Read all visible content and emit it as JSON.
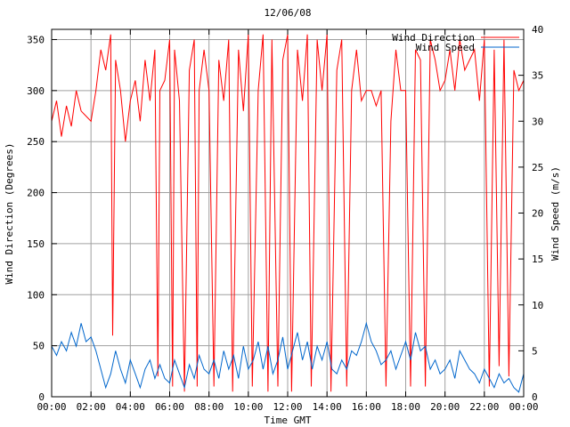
{
  "chart_data": {
    "type": "line",
    "title": "12/06/08",
    "xlabel": "Time GMT",
    "ylabel_left": "Wind Direction (Degrees)",
    "ylabel_right": "Wind Speed (m/s)",
    "x_ticks": [
      "00:00",
      "02:00",
      "04:00",
      "06:00",
      "08:00",
      "10:00",
      "12:00",
      "14:00",
      "16:00",
      "18:00",
      "20:00",
      "22:00",
      "00:00"
    ],
    "x_range_hours": [
      0,
      24
    ],
    "y_left_range": [
      0,
      360
    ],
    "y_left_ticks": [
      0,
      50,
      100,
      150,
      200,
      250,
      300,
      350
    ],
    "y_right_range": [
      0,
      40
    ],
    "y_right_ticks": [
      0,
      5,
      10,
      15,
      20,
      25,
      30,
      35,
      40
    ],
    "grid": true,
    "legend_position": "top-right",
    "series": [
      {
        "name": "Wind Direction",
        "axis": "left",
        "color": "#ff0000",
        "x_hours": [
          0,
          0.25,
          0.5,
          0.75,
          1,
          1.25,
          1.5,
          1.75,
          2,
          2.25,
          2.5,
          2.75,
          3,
          3.1,
          3.25,
          3.5,
          3.75,
          4,
          4.25,
          4.5,
          4.75,
          5,
          5.25,
          5.4,
          5.5,
          5.75,
          6,
          6.15,
          6.25,
          6.5,
          6.75,
          7,
          7.25,
          7.4,
          7.5,
          7.75,
          8,
          8.25,
          8.5,
          8.75,
          9,
          9.2,
          9.5,
          9.75,
          10,
          10.2,
          10.5,
          10.75,
          11,
          11.2,
          11.5,
          11.75,
          12,
          12.2,
          12.5,
          12.75,
          13,
          13.2,
          13.5,
          13.75,
          14,
          14.2,
          14.5,
          14.75,
          15,
          15.25,
          15.5,
          15.75,
          16,
          16.25,
          16.5,
          16.75,
          17,
          17.25,
          17.5,
          17.75,
          18,
          18.25,
          18.5,
          18.75,
          19,
          19.25,
          19.5,
          19.75,
          20,
          20.25,
          20.5,
          20.75,
          21,
          21.25,
          21.5,
          21.75,
          22,
          22.25,
          22.5,
          22.75,
          23,
          23.25,
          23.5,
          23.75,
          24
        ],
        "values": [
          270,
          290,
          255,
          285,
          265,
          300,
          280,
          275,
          270,
          300,
          340,
          320,
          355,
          60,
          330,
          300,
          250,
          290,
          310,
          270,
          330,
          290,
          340,
          20,
          300,
          310,
          350,
          10,
          340,
          290,
          5,
          320,
          350,
          10,
          300,
          340,
          300,
          10,
          330,
          290,
          350,
          5,
          340,
          280,
          355,
          10,
          300,
          355,
          5,
          350,
          10,
          330,
          355,
          5,
          340,
          290,
          355,
          10,
          350,
          300,
          355,
          5,
          320,
          350,
          10,
          300,
          340,
          290,
          300,
          300,
          285,
          300,
          10,
          270,
          340,
          300,
          300,
          10,
          340,
          330,
          10,
          350,
          330,
          300,
          310,
          340,
          300,
          350,
          320,
          330,
          340,
          290,
          350,
          10,
          340,
          30,
          350,
          20,
          320,
          300,
          310
        ]
      },
      {
        "name": "Wind Speed",
        "axis": "right",
        "color": "#0066cc",
        "x_hours": [
          0,
          0.25,
          0.5,
          0.75,
          1,
          1.25,
          1.5,
          1.75,
          2,
          2.25,
          2.5,
          2.75,
          3,
          3.25,
          3.5,
          3.75,
          4,
          4.25,
          4.5,
          4.75,
          5,
          5.25,
          5.5,
          5.75,
          6,
          6.25,
          6.5,
          6.75,
          7,
          7.25,
          7.5,
          7.75,
          8,
          8.25,
          8.5,
          8.75,
          9,
          9.25,
          9.5,
          9.75,
          10,
          10.25,
          10.5,
          10.75,
          11,
          11.25,
          11.5,
          11.75,
          12,
          12.25,
          12.5,
          12.75,
          13,
          13.25,
          13.5,
          13.75,
          14,
          14.25,
          14.5,
          14.75,
          15,
          15.25,
          15.5,
          15.75,
          16,
          16.25,
          16.5,
          16.75,
          17,
          17.25,
          17.5,
          17.75,
          18,
          18.25,
          18.5,
          18.75,
          19,
          19.25,
          19.5,
          19.75,
          20,
          20.25,
          20.5,
          20.75,
          21,
          21.25,
          21.5,
          21.75,
          22,
          22.25,
          22.5,
          22.75,
          23,
          23.25,
          23.5,
          23.75,
          24
        ],
        "values": [
          5.5,
          4.5,
          6,
          5,
          7,
          5.5,
          8,
          6,
          6.5,
          5,
          3,
          1,
          2.5,
          5,
          3,
          1.5,
          4,
          2.5,
          1,
          3,
          4,
          2,
          3.5,
          2,
          1.5,
          4,
          2.5,
          1,
          3.5,
          2,
          4.5,
          3,
          2.5,
          4,
          2,
          5,
          3,
          4.5,
          2,
          5.5,
          3,
          4,
          6,
          3,
          5.5,
          2.5,
          4,
          6.5,
          3,
          5,
          7,
          4,
          6,
          3,
          5.5,
          4,
          6,
          3,
          2.5,
          4,
          3,
          5,
          4.5,
          6,
          8,
          6,
          5,
          3.5,
          4,
          5,
          3,
          4.5,
          6,
          4,
          7,
          5,
          5.5,
          3,
          4,
          2.5,
          3,
          4,
          2,
          5,
          4,
          3,
          2.5,
          1.5,
          3,
          2,
          1,
          2.5,
          1.5,
          2,
          1,
          0.5,
          2.5
        ]
      }
    ]
  }
}
